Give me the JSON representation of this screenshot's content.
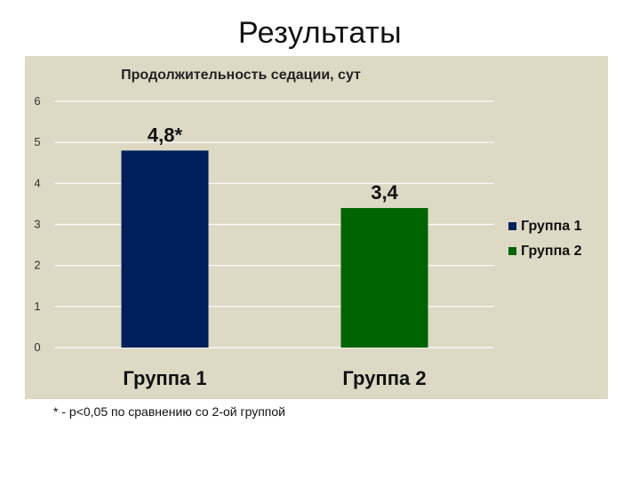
{
  "slide": {
    "title": "Результаты",
    "footnote": "* - p<0,05  по сравнению со 2-ой группой"
  },
  "chart_data": {
    "type": "bar",
    "title": "Продолжительность седации, сут",
    "categories": [
      "Группа 1",
      "Группа 2"
    ],
    "values": [
      4.8,
      3.4
    ],
    "data_labels": [
      "4,8*",
      "3,4"
    ],
    "colors": [
      "#00205b",
      "#006400"
    ],
    "legend": [
      "Группа 1",
      "Группа 2"
    ],
    "legend_position": "right",
    "ylim": [
      0,
      6
    ],
    "yticks": [
      0,
      1,
      2,
      3,
      4,
      5,
      6
    ],
    "grid": true,
    "xlabel": "",
    "ylabel": ""
  }
}
